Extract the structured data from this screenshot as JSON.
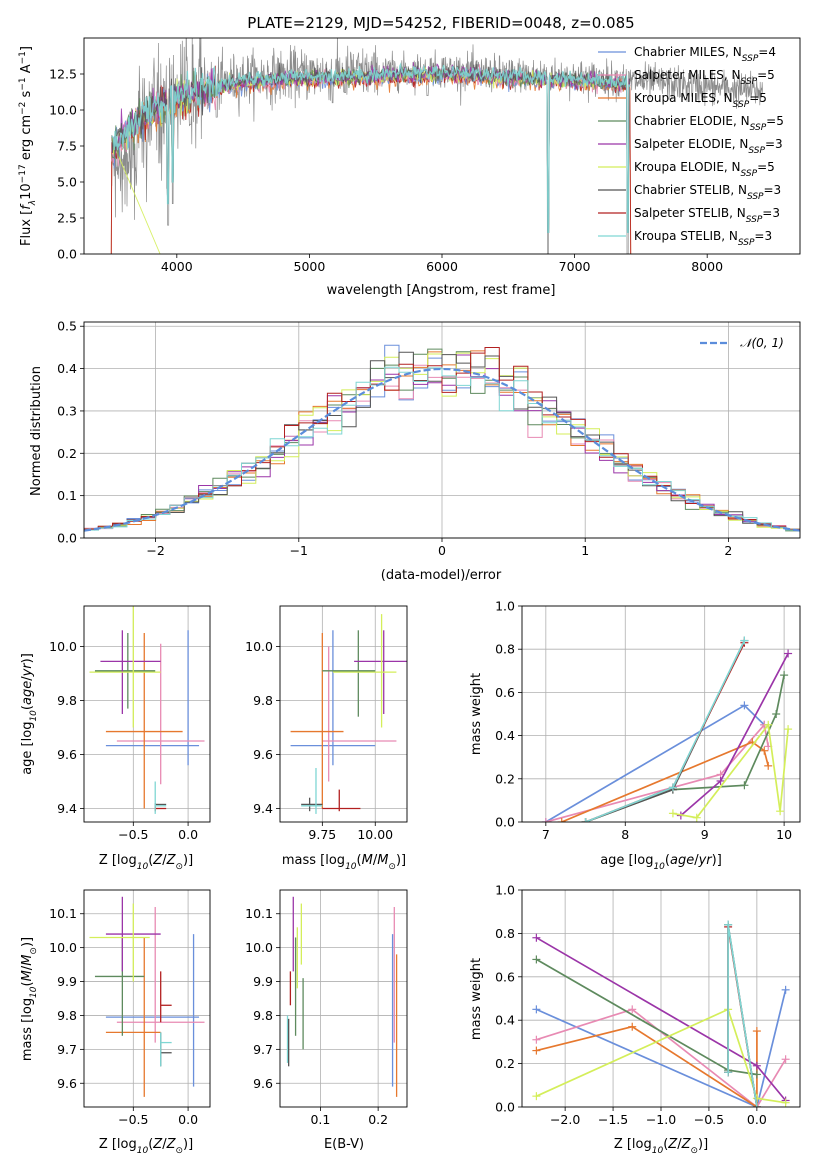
{
  "colors": {
    "chabrier_miles": "#6a8fdb",
    "salpeter_miles": "#e88ab3",
    "kroupa_miles": "#e6782e",
    "chabrier_elodie": "#5e8a5e",
    "salpeter_elodie": "#9b35a8",
    "kroupa_elodie": "#d4ee5a",
    "chabrier_stelib": "#555555",
    "salpeter_stelib": "#b22020",
    "kroupa_stelib": "#7fd6d3",
    "spectrum_gray": "#8c8c8c",
    "gaussian": "#5b8ddb",
    "grid": "#b0b0b0"
  },
  "legend_spectrum": [
    {
      "color": "chabrier_miles",
      "text": "Chabrier MILES, N",
      "sub": "SSP",
      "tail": "=4"
    },
    {
      "color": "salpeter_miles",
      "text": "Salpeter MILES, N",
      "sub": "SSP",
      "tail": "=5"
    },
    {
      "color": "kroupa_miles",
      "text": "Kroupa MILES, N",
      "sub": "SSP",
      "tail": "=5"
    },
    {
      "color": "chabrier_elodie",
      "text": "Chabrier ELODIE, N",
      "sub": "SSP",
      "tail": "=5"
    },
    {
      "color": "salpeter_elodie",
      "text": "Salpeter ELODIE, N",
      "sub": "SSP",
      "tail": "=3"
    },
    {
      "color": "kroupa_elodie",
      "text": "Kroupa ELODIE, N",
      "sub": "SSP",
      "tail": "=5"
    },
    {
      "color": "chabrier_stelib",
      "text": "Chabrier STELIB, N",
      "sub": "SSP",
      "tail": "=3"
    },
    {
      "color": "salpeter_stelib",
      "text": "Salpeter STELIB, N",
      "sub": "SSP",
      "tail": "=3"
    },
    {
      "color": "kroupa_stelib",
      "text": "Kroupa STELIB, N",
      "sub": "SSP",
      "tail": "=3"
    }
  ],
  "legend_residuals": {
    "label": "𝒩(0, 1)"
  },
  "chart_data": [
    {
      "type": "line",
      "title": "PLATE=2129, MJD=54252, FIBERID=0048, z=0.085",
      "xlabel": "wavelength [Angstrom, rest frame]",
      "ylabel": "Flux [fλ10⁻¹⁷ erg cm⁻² s⁻¹ A⁻¹]",
      "xlim": [
        3300,
        8700
      ],
      "ylim": [
        0,
        15
      ],
      "xticks": [
        4000,
        5000,
        6000,
        7000,
        8000
      ],
      "yticks": [
        0.0,
        2.5,
        5.0,
        7.5,
        10.0,
        12.5
      ],
      "continuum": [
        [
          3500,
          7.5
        ],
        [
          3700,
          9.5
        ],
        [
          4000,
          11.2
        ],
        [
          4500,
          12.2
        ],
        [
          5000,
          12.5
        ],
        [
          5500,
          12.6
        ],
        [
          6000,
          12.8
        ],
        [
          6500,
          12.5
        ],
        [
          7000,
          12.3
        ],
        [
          7500,
          12.0
        ],
        [
          8000,
          11.6
        ],
        [
          8400,
          11.3
        ]
      ],
      "absorption_dips": [
        [
          3934,
          2.0
        ],
        [
          3969,
          3.5
        ],
        [
          4102,
          9.0
        ],
        [
          4300,
          9.5
        ],
        [
          5175,
          10.5
        ],
        [
          5270,
          11.2
        ],
        [
          5890,
          11.0
        ],
        [
          6563,
          11.8
        ],
        [
          6800,
          0.0
        ],
        [
          7400,
          0.0
        ]
      ],
      "model_range": [
        3510,
        7420
      ]
    },
    {
      "type": "line",
      "xlabel": "(data-model)/error",
      "ylabel": "Normed distribution",
      "xlim": [
        -2.5,
        2.5
      ],
      "ylim": [
        0,
        0.51
      ],
      "xticks": [
        -2,
        -1,
        0,
        1,
        2
      ],
      "yticks": [
        0.0,
        0.1,
        0.2,
        0.3,
        0.4,
        0.5
      ],
      "bin_width": 0.1
    },
    {
      "type": "scatter",
      "xlabel": "Z [log₁₀(Z/Z⊙)]",
      "ylabel": "age  [log₁₀(age/yr)]",
      "xlim": [
        -0.95,
        0.2
      ],
      "ylim": [
        9.35,
        10.15
      ],
      "xticks": [
        -0.5,
        0.0
      ],
      "yticks": [
        9.4,
        9.6,
        9.8,
        10.0
      ],
      "xticklabels": [
        "−0.5",
        "0.0"
      ],
      "yticklabels": [
        "9.4",
        "9.6",
        "9.8",
        "10.0"
      ],
      "crosses": [
        {
          "c": "chabrier_miles",
          "x": 0.0,
          "y": 9.633,
          "xl": -0.75,
          "xh": 0.1,
          "yl": 9.56,
          "yh": 10.06
        },
        {
          "c": "salpeter_miles",
          "x": -0.25,
          "y": 9.65,
          "xl": -0.65,
          "xh": 0.15,
          "yl": 9.49,
          "yh": 10.01
        },
        {
          "c": "kroupa_miles",
          "x": -0.4,
          "y": 9.685,
          "xl": -0.75,
          "xh": -0.05,
          "yl": 9.4,
          "yh": 10.05
        },
        {
          "c": "chabrier_elodie",
          "x": -0.55,
          "y": 9.91,
          "xl": -0.85,
          "xh": -0.3,
          "yl": 9.77,
          "yh": 10.05
        },
        {
          "c": "salpeter_elodie",
          "x": -0.6,
          "y": 9.945,
          "xl": -0.8,
          "xh": -0.25,
          "yl": 9.75,
          "yh": 10.06
        },
        {
          "c": "kroupa_elodie",
          "x": -0.5,
          "y": 9.905,
          "xl": -0.9,
          "xh": -0.25,
          "yl": 9.7,
          "yh": 10.15
        },
        {
          "c": "chabrier_stelib",
          "x": -0.3,
          "y": 9.415,
          "xl": -0.3,
          "xh": -0.2,
          "yl": 9.39,
          "yh": 9.42
        },
        {
          "c": "salpeter_stelib",
          "x": -0.3,
          "y": 9.4,
          "xl": -0.3,
          "xh": -0.2,
          "yl": 9.39,
          "yh": 9.41
        },
        {
          "c": "kroupa_stelib",
          "x": -0.3,
          "y": 9.41,
          "xl": -0.3,
          "xh": -0.2,
          "yl": 9.38,
          "yh": 9.5
        }
      ]
    },
    {
      "type": "scatter",
      "xlabel": "mass [log₁₀(M/M⊙)]",
      "ylabel": "",
      "xlim": [
        9.55,
        10.15
      ],
      "ylim": [
        9.35,
        10.15
      ],
      "xticks": [
        9.75,
        10.0
      ],
      "yticks": [
        9.4,
        9.6,
        9.8,
        10.0
      ],
      "xticklabels": [
        "9.75",
        "10.00"
      ],
      "yticklabels": [
        "9.4",
        "9.6",
        "9.8",
        "10.0"
      ],
      "crosses": [
        {
          "c": "chabrier_miles",
          "x": 9.8,
          "y": 9.633,
          "xl": 9.6,
          "xh": 10.0,
          "yl": 9.56,
          "yh": 10.06
        },
        {
          "c": "salpeter_miles",
          "x": 9.78,
          "y": 9.65,
          "xl": 9.75,
          "xh": 10.1,
          "yl": 9.5,
          "yh": 10.0
        },
        {
          "c": "kroupa_miles",
          "x": 9.75,
          "y": 9.685,
          "xl": 9.6,
          "xh": 9.85,
          "yl": 9.4,
          "yh": 10.05
        },
        {
          "c": "chabrier_elodie",
          "x": 9.92,
          "y": 9.91,
          "xl": 9.75,
          "xh": 10.0,
          "yl": 9.74,
          "yh": 10.06
        },
        {
          "c": "salpeter_elodie",
          "x": 10.04,
          "y": 9.945,
          "xl": 9.9,
          "xh": 10.15,
          "yl": 9.75,
          "yh": 10.06
        },
        {
          "c": "kroupa_elodie",
          "x": 10.03,
          "y": 9.905,
          "xl": 9.8,
          "xh": 10.1,
          "yl": 9.7,
          "yh": 10.12
        },
        {
          "c": "chabrier_stelib",
          "x": 9.69,
          "y": 9.415,
          "xl": 9.65,
          "xh": 9.75,
          "yl": 9.39,
          "yh": 9.44
        },
        {
          "c": "salpeter_stelib",
          "x": 9.83,
          "y": 9.4,
          "xl": 9.75,
          "xh": 9.93,
          "yl": 9.39,
          "yh": 9.47
        },
        {
          "c": "kroupa_stelib",
          "x": 9.72,
          "y": 9.41,
          "xl": 9.65,
          "xh": 9.75,
          "yl": 9.38,
          "yh": 9.55
        }
      ]
    },
    {
      "type": "line",
      "xlabel": "age  [log₁₀(age/yr)]",
      "ylabel": "mass weight",
      "xlim": [
        6.7,
        10.2
      ],
      "ylim": [
        0,
        1.0
      ],
      "xticks": [
        7,
        8,
        9,
        10
      ],
      "yticks": [
        0.0,
        0.2,
        0.4,
        0.6,
        0.8,
        1.0
      ],
      "series": [
        {
          "c": "chabrier_miles",
          "x": [
            7.0,
            9.5,
            9.75
          ],
          "y": [
            0.0,
            0.54,
            0.45
          ]
        },
        {
          "c": "salpeter_miles",
          "x": [
            7.0,
            9.2,
            9.75,
            9.8
          ],
          "y": [
            0.0,
            0.22,
            0.45,
            0.35
          ]
        },
        {
          "c": "kroupa_miles",
          "x": [
            7.2,
            9.6,
            9.75,
            9.8
          ],
          "y": [
            0.0,
            0.37,
            0.33,
            0.26
          ]
        },
        {
          "c": "chabrier_elodie",
          "x": [
            7.5,
            8.6,
            9.5,
            9.9,
            10.0
          ],
          "y": [
            0.0,
            0.15,
            0.17,
            0.5,
            0.68
          ]
        },
        {
          "c": "salpeter_elodie",
          "x": [
            8.7,
            9.2,
            10.05
          ],
          "y": [
            0.03,
            0.19,
            0.78
          ]
        },
        {
          "c": "kroupa_elodie",
          "x": [
            8.6,
            8.9,
            9.8,
            9.95,
            10.05
          ],
          "y": [
            0.04,
            0.02,
            0.45,
            0.05,
            0.43
          ]
        },
        {
          "c": "chabrier_stelib",
          "x": [
            7.5,
            8.6,
            9.5
          ],
          "y": [
            0.0,
            0.15,
            0.84
          ]
        },
        {
          "c": "salpeter_stelib",
          "x": [
            7.5,
            8.6,
            9.5
          ],
          "y": [
            0.0,
            0.16,
            0.83
          ]
        },
        {
          "c": "kroupa_stelib",
          "x": [
            7.5,
            8.6,
            9.5
          ],
          "y": [
            0.0,
            0.16,
            0.84
          ]
        }
      ]
    },
    {
      "type": "scatter",
      "xlabel": "Z [log₁₀(Z/Z⊙)]",
      "ylabel": "mass [log₁₀(M/M⊙)]",
      "xlim": [
        -0.95,
        0.2
      ],
      "ylim": [
        9.53,
        10.17
      ],
      "xticks": [
        -0.5,
        0.0
      ],
      "yticks": [
        9.6,
        9.7,
        9.8,
        9.9,
        10.0,
        10.1
      ],
      "xticklabels": [
        "−0.5",
        "0.0"
      ],
      "yticklabels": [
        "9.6",
        "9.7",
        "9.8",
        "9.9",
        "10.0",
        "10.1"
      ],
      "crosses": [
        {
          "c": "chabrier_miles",
          "x": 0.05,
          "y": 9.795,
          "xl": -0.75,
          "xh": 0.1,
          "yl": 9.59,
          "yh": 10.04
        },
        {
          "c": "salpeter_miles",
          "x": -0.3,
          "y": 9.78,
          "xl": -0.65,
          "xh": 0.15,
          "yl": 9.72,
          "yh": 10.12
        },
        {
          "c": "kroupa_miles",
          "x": -0.4,
          "y": 9.75,
          "xl": -0.75,
          "xh": -0.25,
          "yl": 9.56,
          "yh": 10.03
        },
        {
          "c": "chabrier_elodie",
          "x": -0.6,
          "y": 9.915,
          "xl": -0.85,
          "xh": -0.4,
          "yl": 9.74,
          "yh": 10.03
        },
        {
          "c": "salpeter_elodie",
          "x": -0.6,
          "y": 10.04,
          "xl": -0.75,
          "xh": -0.25,
          "yl": 9.93,
          "yh": 10.15
        },
        {
          "c": "kroupa_elodie",
          "x": -0.5,
          "y": 10.03,
          "xl": -0.9,
          "xh": -0.35,
          "yl": 9.9,
          "yh": 10.13
        },
        {
          "c": "chabrier_stelib",
          "x": -0.25,
          "y": 9.69,
          "xl": -0.25,
          "xh": -0.15,
          "yl": 9.65,
          "yh": 9.75
        },
        {
          "c": "salpeter_stelib",
          "x": -0.25,
          "y": 9.83,
          "xl": -0.25,
          "xh": -0.15,
          "yl": 9.78,
          "yh": 9.93
        },
        {
          "c": "kroupa_stelib",
          "x": -0.25,
          "y": 9.72,
          "xl": -0.25,
          "xh": -0.15,
          "yl": 9.65,
          "yh": 9.75
        }
      ]
    },
    {
      "type": "scatter",
      "xlabel": "E(B-V)",
      "ylabel": "",
      "xlim": [
        0.03,
        0.25
      ],
      "ylim": [
        9.53,
        10.17
      ],
      "xticks": [
        0.1,
        0.2
      ],
      "yticks": [
        9.6,
        9.7,
        9.8,
        9.9,
        10.0,
        10.1
      ],
      "xticklabels": [
        "0.1",
        "0.2"
      ],
      "yticklabels": [
        "9.6",
        "9.7",
        "9.8",
        "9.9",
        "10.0",
        "10.1"
      ],
      "vlines": [
        {
          "c": "kroupa_stelib",
          "x": 0.043,
          "yl": 9.66,
          "yh": 9.8
        },
        {
          "c": "chabrier_stelib",
          "x": 0.045,
          "yl": 9.65,
          "yh": 9.79
        },
        {
          "c": "salpeter_stelib",
          "x": 0.048,
          "yl": 9.83,
          "yh": 9.93
        },
        {
          "c": "salpeter_elodie",
          "x": 0.053,
          "yl": 9.93,
          "yh": 10.15
        },
        {
          "c": "chabrier_elodie",
          "x": 0.057,
          "yl": 9.74,
          "yh": 10.03
        },
        {
          "c": "kroupa_elodie",
          "x": 0.06,
          "yl": 9.88,
          "yh": 10.06
        },
        {
          "c": "kroupa_elodie",
          "x": 0.067,
          "yl": 9.95,
          "yh": 10.13
        },
        {
          "c": "chabrier_elodie",
          "x": 0.07,
          "yl": 9.7,
          "yh": 9.91
        },
        {
          "c": "chabrier_miles",
          "x": 0.225,
          "yl": 9.59,
          "yh": 10.04
        },
        {
          "c": "salpeter_miles",
          "x": 0.228,
          "yl": 9.72,
          "yh": 10.12
        },
        {
          "c": "kroupa_miles",
          "x": 0.232,
          "yl": 9.56,
          "yh": 9.98
        }
      ]
    },
    {
      "type": "line",
      "xlabel": "Z [log₁₀(Z/Z⊙)]",
      "ylabel": "mass weight",
      "xlim": [
        -2.45,
        0.45
      ],
      "ylim": [
        0,
        1.0
      ],
      "xticks": [
        -2.0,
        -1.5,
        -1.0,
        -0.5,
        0.0
      ],
      "yticks": [
        0.0,
        0.2,
        0.4,
        0.6,
        0.8,
        1.0
      ],
      "xticklabels": [
        "−2.0",
        "−1.5",
        "−1.0",
        "−0.5",
        "0.0"
      ],
      "series": [
        {
          "c": "chabrier_miles",
          "x": [
            -2.3,
            0.0,
            0.3
          ],
          "y": [
            0.45,
            0.0,
            0.54
          ]
        },
        {
          "c": "salpeter_miles",
          "x": [
            -2.3,
            -1.3,
            0.0,
            0.3
          ],
          "y": [
            0.31,
            0.45,
            0.0,
            0.22
          ]
        },
        {
          "c": "kroupa_miles",
          "x": [
            -2.3,
            -1.3,
            0.0,
            0.0
          ],
          "y": [
            0.26,
            0.37,
            0.0,
            0.35
          ]
        },
        {
          "c": "chabrier_elodie",
          "x": [
            -2.3,
            -0.3,
            0.0
          ],
          "y": [
            0.68,
            0.17,
            0.15
          ]
        },
        {
          "c": "salpeter_elodie",
          "x": [
            -2.3,
            0.0,
            0.3
          ],
          "y": [
            0.78,
            0.19,
            0.03
          ]
        },
        {
          "c": "kroupa_elodie",
          "x": [
            -2.3,
            -0.3,
            0.0,
            0.3
          ],
          "y": [
            0.05,
            0.45,
            0.04,
            0.02
          ]
        },
        {
          "c": "chabrier_stelib",
          "x": [
            -0.3,
            -0.3,
            0.0
          ],
          "y": [
            0.16,
            0.84,
            0.0
          ]
        },
        {
          "c": "salpeter_stelib",
          "x": [
            -0.3,
            -0.3,
            0.0
          ],
          "y": [
            0.16,
            0.83,
            0.0
          ]
        },
        {
          "c": "kroupa_stelib",
          "x": [
            -0.3,
            -0.3,
            0.0
          ],
          "y": [
            0.16,
            0.84,
            0.0
          ]
        }
      ]
    }
  ]
}
